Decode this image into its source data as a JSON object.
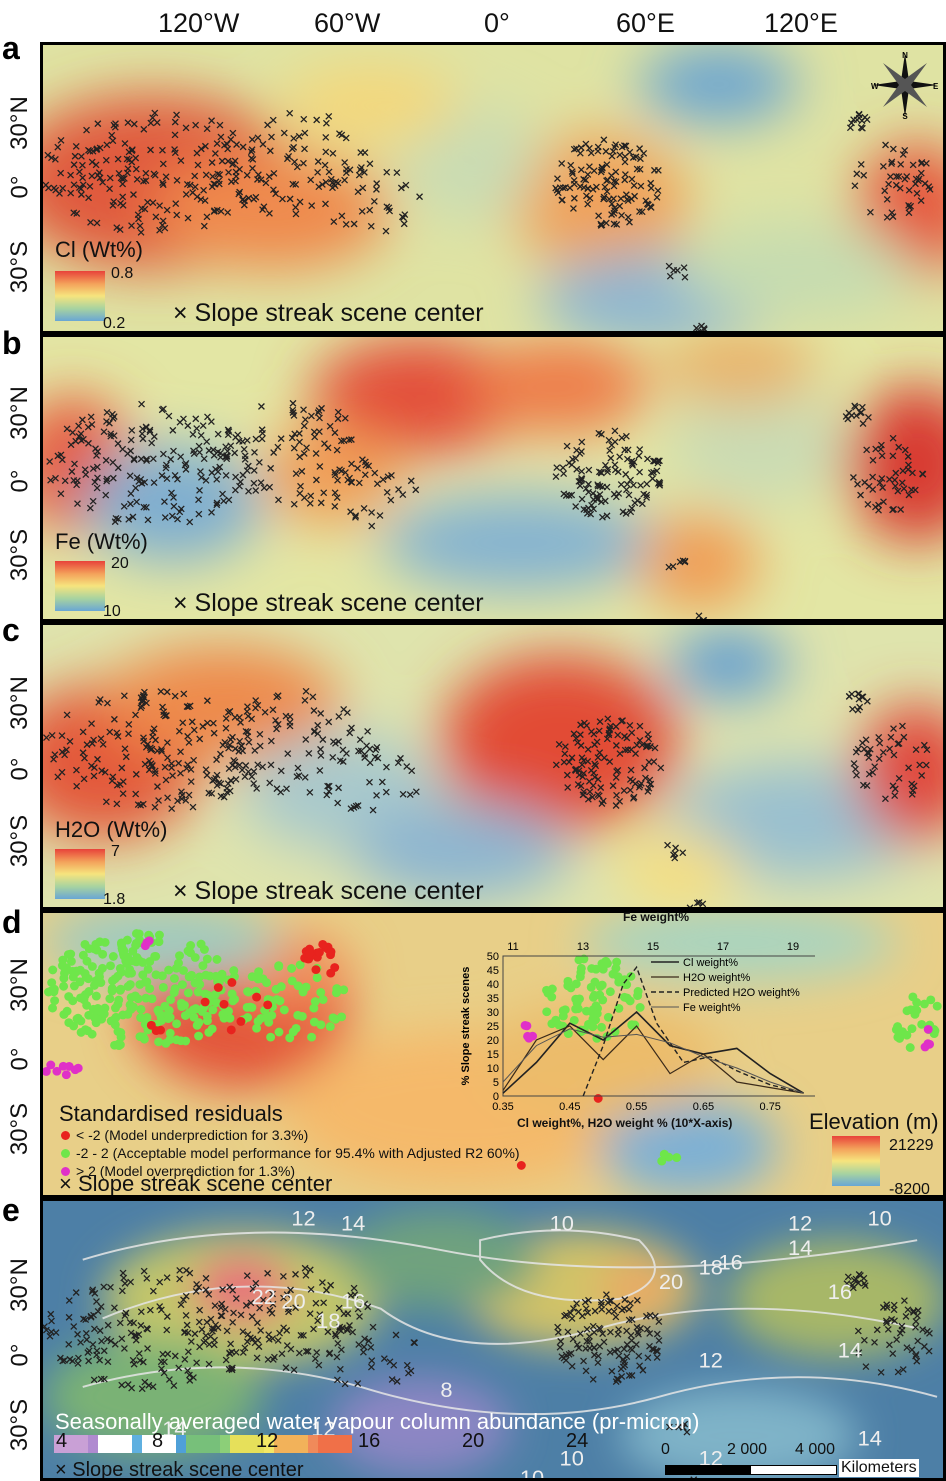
{
  "longitude_labels": [
    "120°W",
    "60°W",
    "0°",
    "60°E",
    "120°E"
  ],
  "panels": [
    {
      "letter": "a",
      "variable_label": "Cl (Wt%)",
      "legend_max": "0.8",
      "legend_min": "0.2",
      "marker_label": "× Slope streak scene center",
      "lat_labels": [
        "30°N",
        "0°",
        "30°S"
      ]
    },
    {
      "letter": "b",
      "variable_label": "Fe (Wt%)",
      "legend_max": "20",
      "legend_min": "10",
      "marker_label": "× Slope streak scene center",
      "lat_labels": [
        "30°N",
        "0°",
        "30°S"
      ]
    },
    {
      "letter": "c",
      "variable_label": "H2O (Wt%)",
      "legend_max": "7",
      "legend_min": "1.8",
      "marker_label": "× Slope streak scene center",
      "lat_labels": [
        "30°N",
        "0°",
        "30°S"
      ]
    },
    {
      "letter": "d",
      "lat_labels": [
        "30°N",
        "0°",
        "30°S"
      ]
    },
    {
      "letter": "e",
      "lat_labels": [
        "30°N",
        "0°",
        "30°S"
      ]
    }
  ],
  "compass": {
    "n": "N",
    "s": "S",
    "e": "E",
    "w": "W"
  },
  "panel_d": {
    "residuals_title": "Standardised residuals",
    "items": [
      {
        "label": "< -2 (Model underprediction for 3.3%)",
        "color": "#e8231e"
      },
      {
        "label": "-2 - 2 (Acceptable model performance for 95.4% with Adjusted R2 60%)",
        "color": "#6ee64a"
      },
      {
        "label": "> 2 (Model overprediction for 1.3%)",
        "color": "#e030c8"
      }
    ],
    "marker_label": "× Slope streak scene center",
    "elevation_title": "Elevation (m)",
    "elevation_max": "21229",
    "elevation_min": "-8200"
  },
  "chart_data": {
    "type": "line",
    "title": "Fe weight%",
    "ylabel": "% Slope streak scenes",
    "xlabel": "Cl weight%, H2O weight % (10*X-axis)",
    "x_ticks": [
      "0.35",
      "0.45",
      "0.55",
      "0.65",
      "0.75"
    ],
    "top_ticks": [
      "11",
      "13",
      "15",
      "17",
      "19"
    ],
    "y_ticks": [
      "0",
      "5",
      "10",
      "15",
      "20",
      "25",
      "30",
      "35",
      "40",
      "45",
      "50"
    ],
    "xlim": [
      0.35,
      0.82
    ],
    "ylim": [
      0,
      50
    ],
    "series": [
      {
        "name": "Cl weight%",
        "x": [
          0.35,
          0.4,
          0.45,
          0.5,
          0.55,
          0.6,
          0.65,
          0.7,
          0.75,
          0.8
        ],
        "y": [
          1,
          12,
          26,
          20,
          30,
          18,
          15,
          17,
          8,
          1
        ]
      },
      {
        "name": "H2O weight%",
        "x": [
          0.35,
          0.4,
          0.45,
          0.5,
          0.55,
          0.6,
          0.65,
          0.7,
          0.75,
          0.8
        ],
        "y": [
          2,
          20,
          25,
          13,
          25,
          8,
          15,
          5,
          3,
          1
        ]
      },
      {
        "name": "Predicted H2O weight%",
        "x": [
          0.47,
          0.5,
          0.53,
          0.55,
          0.58,
          0.62,
          0.66,
          0.7,
          0.75,
          0.8
        ],
        "y": [
          0,
          18,
          40,
          46,
          26,
          12,
          14,
          9,
          4,
          1
        ]
      },
      {
        "name": "Fe weight%",
        "x": [
          0.35,
          0.4,
          0.45,
          0.5,
          0.55,
          0.6,
          0.65,
          0.7,
          0.75,
          0.8
        ],
        "y": [
          5,
          18,
          24,
          21,
          22,
          19,
          14,
          10,
          5,
          1
        ]
      }
    ]
  },
  "panel_e": {
    "title": "Seasonally averaged water vapour column abundance (pr-micron)",
    "ticks": [
      "4",
      "8",
      "12",
      "16",
      "20",
      "24"
    ],
    "marker_label": "× Slope streak scene center",
    "scale_ticks": [
      "0",
      "2 000",
      "4 000"
    ],
    "scale_unit": "Kilometers",
    "contour_labels": [
      "12",
      "14",
      "10",
      "12",
      "10",
      "16",
      "14",
      "16",
      "20",
      "18",
      "16",
      "18",
      "20",
      "22",
      "12",
      "14",
      "12",
      "8",
      "14",
      "12",
      "10",
      "10",
      "14"
    ]
  },
  "colors": {
    "red": "#e8423a",
    "orange": "#f3a05a",
    "yellow": "#f6e47e",
    "green": "#a8d3a0",
    "blue": "#69a6d4"
  }
}
